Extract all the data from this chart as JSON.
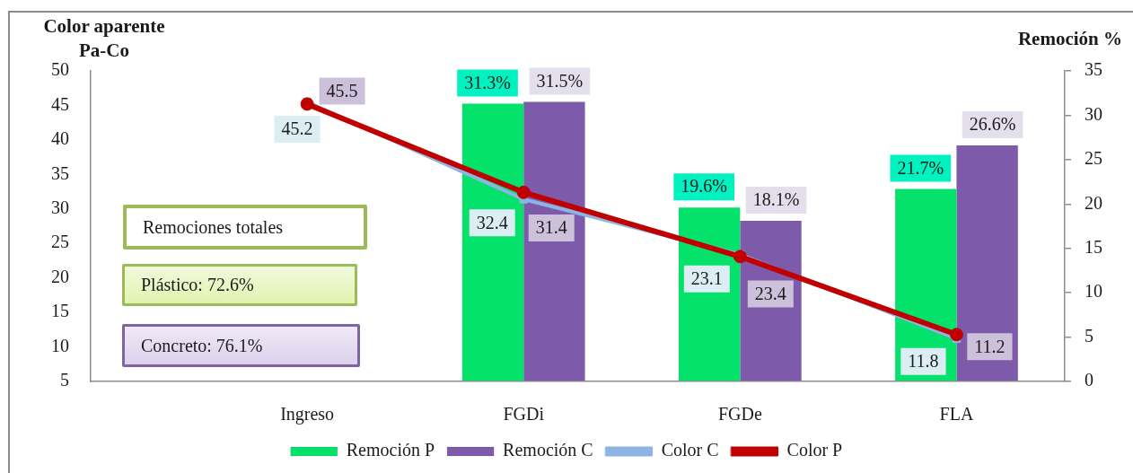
{
  "chart_data": {
    "type": "bar",
    "ylabel": "Color aparente Pa-Co",
    "y2label": "Remoción %",
    "categories": [
      "Ingreso",
      "FGDi",
      "FGDe",
      "FLA"
    ],
    "series": [
      {
        "name": "Remoción P",
        "axis": "y2",
        "color": "#05e26b",
        "values": [
          null,
          31.3,
          19.6,
          21.7
        ],
        "value_labels": [
          null,
          "31.3%",
          "19.6%",
          "21.7%"
        ]
      },
      {
        "name": "Remoción C",
        "axis": "y2",
        "color": "#7e5aab",
        "values": [
          null,
          31.5,
          18.1,
          26.6
        ],
        "value_labels": [
          null,
          "31.5%",
          "18.1%",
          "26.6%"
        ]
      },
      {
        "name": "Color C",
        "type": "line",
        "color": "#8db4e2",
        "marker": "square",
        "values": [
          45.5,
          31.4,
          23.4,
          11.2
        ],
        "value_labels": [
          "45.5",
          "31.4",
          "23.4",
          "11.2"
        ]
      },
      {
        "name": "Color P",
        "type": "line",
        "color": "#c00000",
        "marker": "circle",
        "values": [
          45.2,
          32.4,
          23.1,
          11.8
        ],
        "value_labels": [
          "45.2",
          "32.4",
          "23.1",
          "11.8"
        ]
      }
    ],
    "ylim": [
      5,
      50
    ],
    "yticks": [
      5,
      10,
      15,
      20,
      25,
      30,
      35,
      40,
      45,
      50
    ],
    "y2lim": [
      0,
      35
    ],
    "y2ticks": [
      0,
      5,
      10,
      15,
      20,
      25,
      30,
      35
    ],
    "grid": false,
    "legend": "bottom",
    "annotations": [
      "Remociones totales",
      "Plástico: 72.6%",
      "Concreto: 76.1%"
    ]
  }
}
